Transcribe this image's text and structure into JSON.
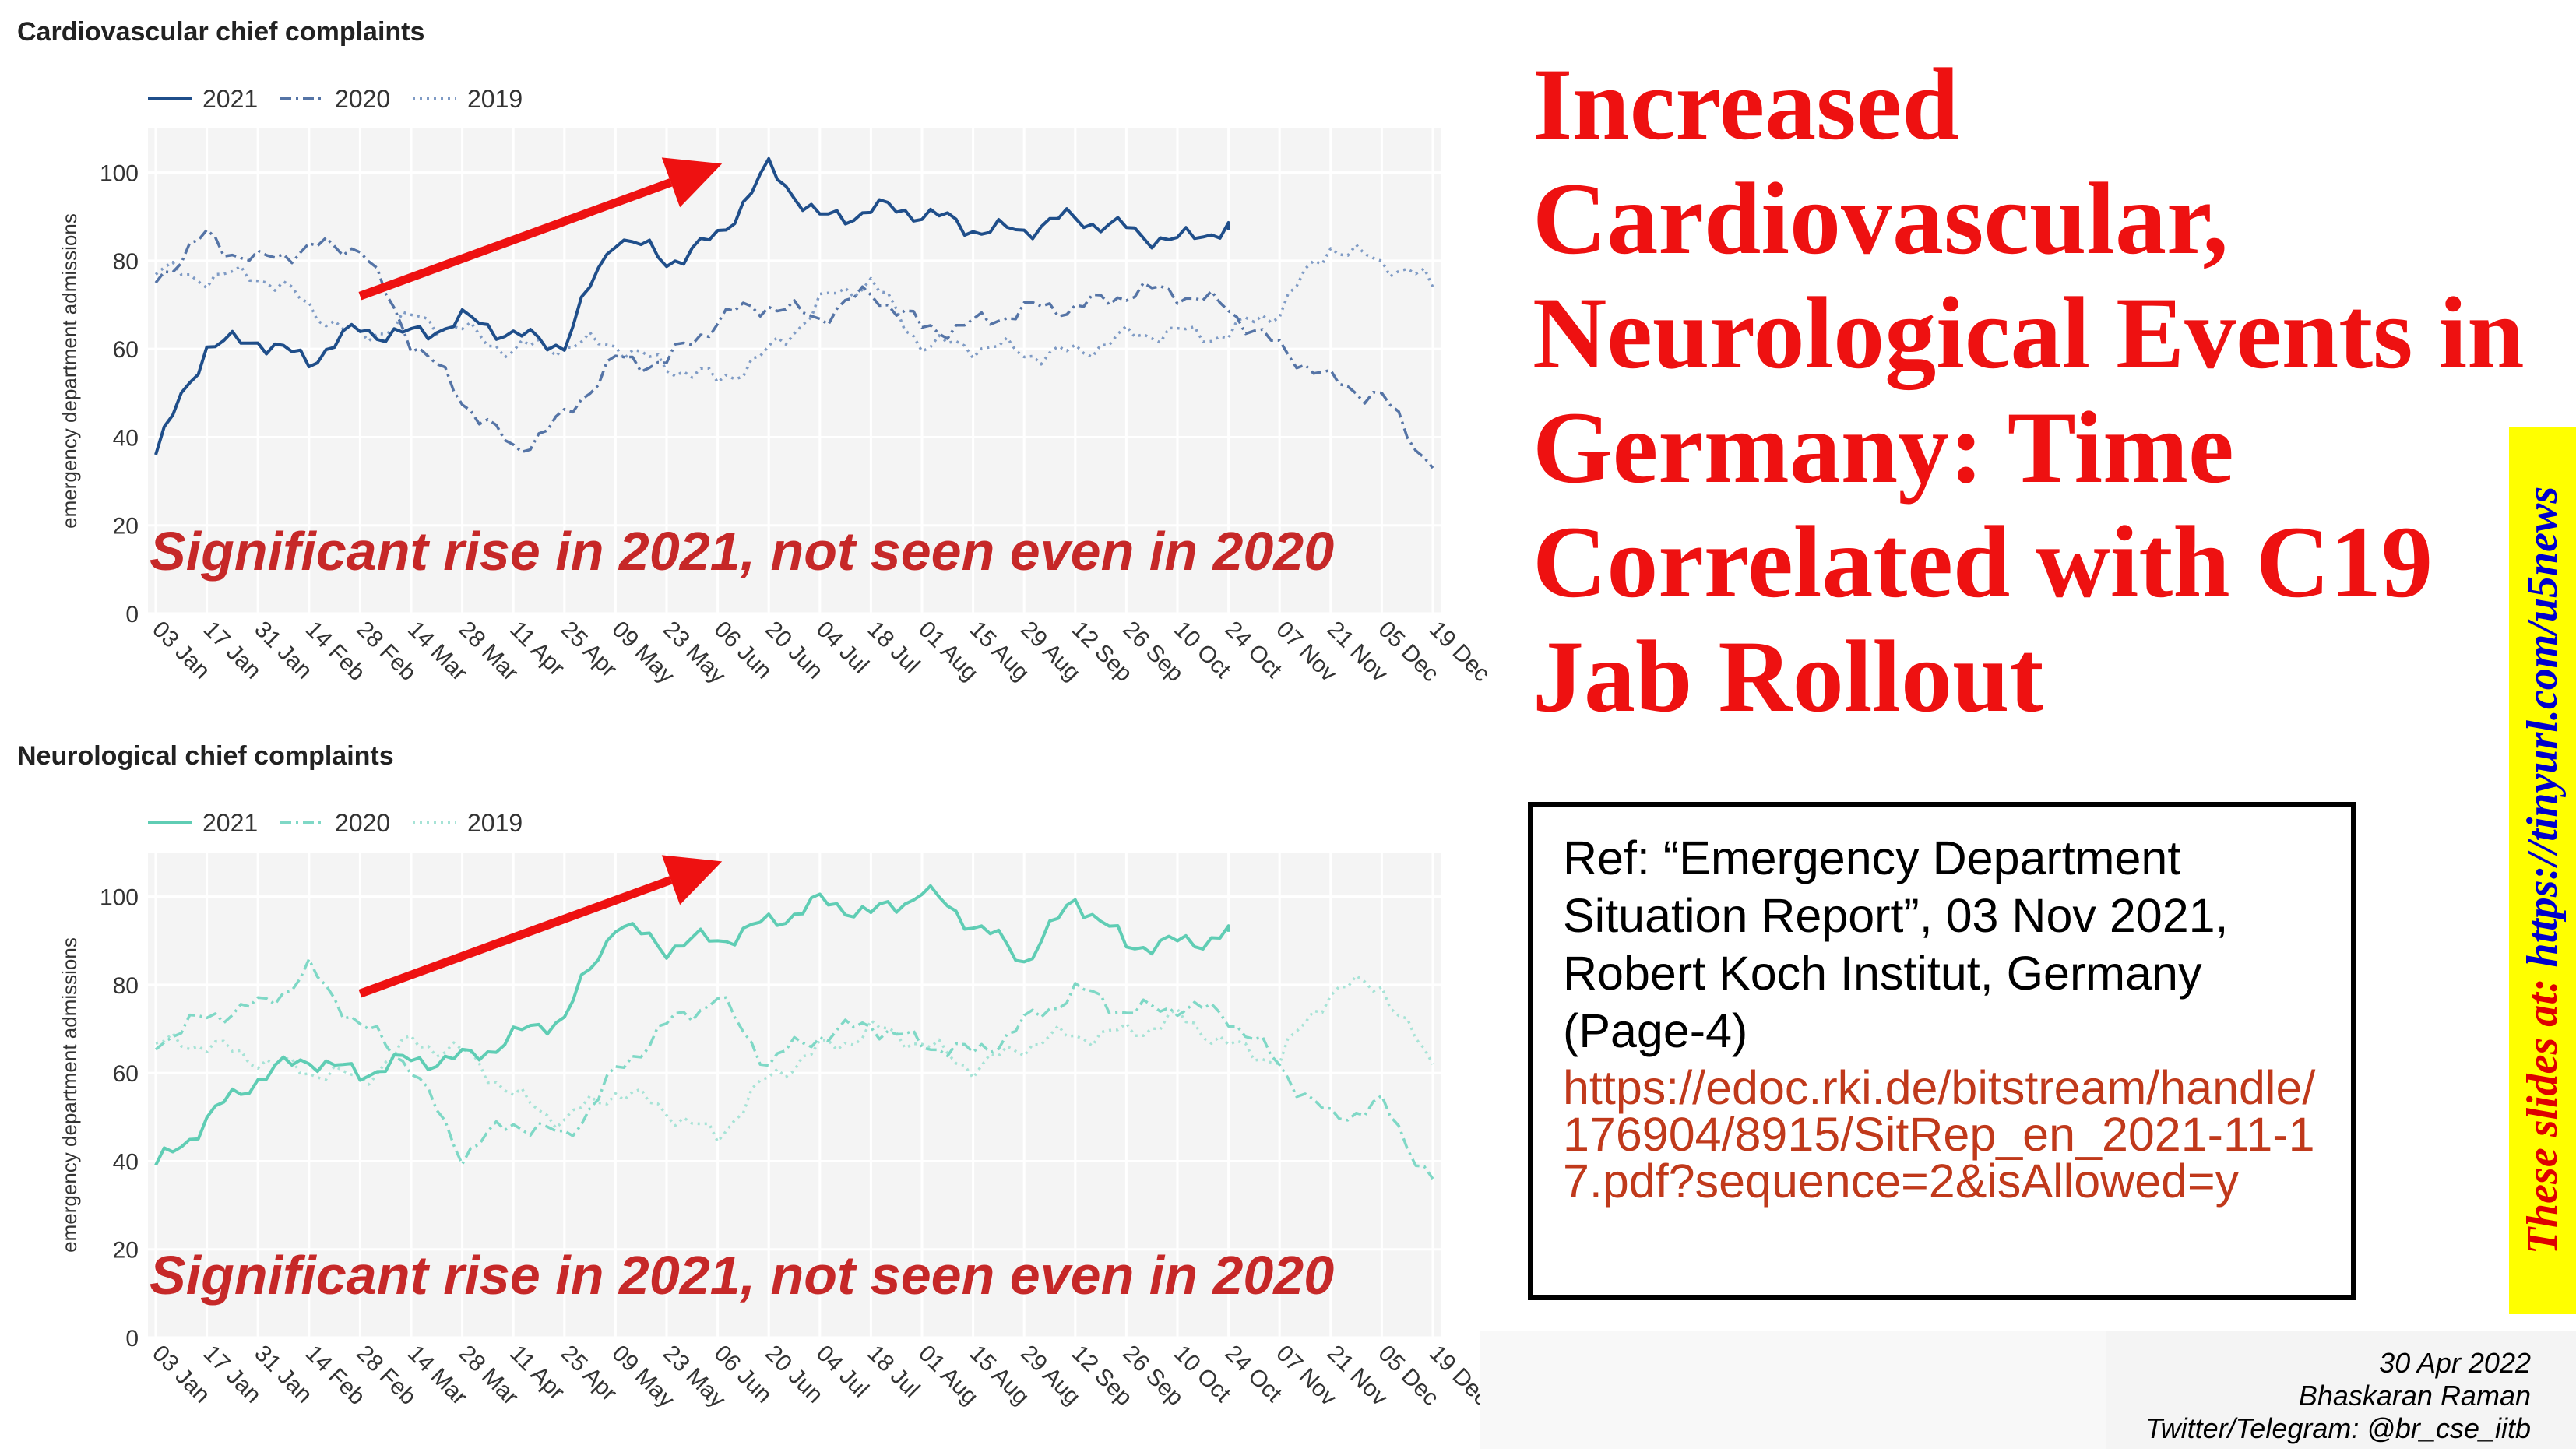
{
  "slide": {
    "title": "Increased Cardiovascular, Neurological Events in Germany: Time Correlated with C19 Jab Rollout",
    "reference": {
      "text": "Ref: “Emergency Department Situation Report”, 03 Nov 2021, Robert Koch Institut, Germany (Page-4)",
      "link": "https://edoc.rki.de/bitstream/handle/176904/8915/SitRep_en_2021-11-17.pdf?sequence=2&isAllowed=y"
    },
    "side_banner": {
      "label": "These slides at:",
      "url": "https://tinyurl.com/u5news"
    },
    "footer": {
      "date": "30 Apr 2022",
      "author": "Bhaskaran Raman",
      "handle": "Twitter/Telegram: @br_cse_iitb"
    }
  },
  "chart_data": [
    {
      "type": "line",
      "title": "Cardiovascular chief complaints",
      "ylabel": "emergency department admissions",
      "xlabel": "",
      "ylim": [
        0,
        110
      ],
      "yticks": [
        0,
        20,
        40,
        60,
        80,
        100
      ],
      "grid": true,
      "legend_position": "top-left",
      "annotation": "Significant rise in 2021, not seen even in 2020",
      "annotation_color": "#c62828",
      "arrow": {
        "from": [
          "28 Feb",
          72
        ],
        "to": [
          "20 Jun",
          102
        ],
        "color": "#ee1111"
      },
      "colors": {
        "2021": "#1f4e8a",
        "2020": "#5574a6",
        "2019": "#7f9bc5"
      },
      "x": [
        "03 Jan",
        "17 Jan",
        "31 Jan",
        "14 Feb",
        "28 Feb",
        "14 Mar",
        "28 Mar",
        "11 Apr",
        "25 Apr",
        "09 May",
        "23 May",
        "06 Jun",
        "20 Jun",
        "04 Jul",
        "18 Jul",
        "01 Aug",
        "15 Aug",
        "29 Aug",
        "12 Sep",
        "26 Sep",
        "10 Oct",
        "24 Oct",
        "07 Nov",
        "21 Nov",
        "05 Dec",
        "19 Dec"
      ],
      "series": [
        {
          "name": "2021",
          "dash": "solid",
          "values": [
            36,
            60,
            63,
            57,
            64,
            64,
            66,
            63,
            62,
            85,
            80,
            86,
            100,
            90,
            92,
            90,
            88,
            87,
            89,
            88,
            84,
            87,
            null,
            null,
            null,
            null
          ]
        },
        {
          "name": "2020",
          "dash": "dashdot",
          "values": [
            75,
            86,
            80,
            82,
            84,
            62,
            48,
            38,
            44,
            57,
            58,
            66,
            70,
            68,
            72,
            65,
            66,
            68,
            70,
            73,
            72,
            70,
            60,
            52,
            50,
            33
          ]
        },
        {
          "name": "2019",
          "dash": "dot",
          "values": [
            78,
            77,
            76,
            70,
            63,
            66,
            65,
            60,
            60,
            62,
            56,
            52,
            60,
            70,
            75,
            62,
            60,
            59,
            60,
            62,
            64,
            64,
            68,
            84,
            80,
            74
          ]
        }
      ]
    },
    {
      "type": "line",
      "title": "Neurological chief complaints",
      "ylabel": "emergency department admissions",
      "xlabel": "",
      "ylim": [
        0,
        110
      ],
      "yticks": [
        0,
        20,
        40,
        60,
        80,
        100
      ],
      "grid": true,
      "legend_position": "top-left",
      "annotation": "Significant rise in 2021, not seen even in 2020",
      "annotation_color": "#c62828",
      "arrow": {
        "from": [
          "28 Feb",
          78
        ],
        "to": [
          "20 Jun",
          108
        ],
        "color": "#ee1111"
      },
      "colors": {
        "2021": "#5fcdb4",
        "2020": "#7fd8c6",
        "2019": "#a6e3d6"
      },
      "x": [
        "03 Jan",
        "17 Jan",
        "31 Jan",
        "14 Feb",
        "28 Feb",
        "14 Mar",
        "28 Mar",
        "11 Apr",
        "25 Apr",
        "09 May",
        "23 May",
        "06 Jun",
        "20 Jun",
        "04 Jul",
        "18 Jul",
        "01 Aug",
        "15 Aug",
        "29 Aug",
        "12 Sep",
        "26 Sep",
        "10 Oct",
        "24 Oct",
        "07 Nov",
        "21 Nov",
        "05 Dec",
        "19 Dec"
      ],
      "series": [
        {
          "name": "2021",
          "dash": "solid",
          "values": [
            39,
            50,
            58,
            64,
            60,
            62,
            64,
            68,
            72,
            95,
            88,
            90,
            95,
            98,
            96,
            102,
            93,
            86,
            100,
            88,
            90,
            92,
            null,
            null,
            null,
            null
          ]
        },
        {
          "name": "2020",
          "dash": "dashdot",
          "values": [
            68,
            72,
            75,
            84,
            70,
            62,
            42,
            48,
            46,
            60,
            70,
            78,
            62,
            68,
            72,
            66,
            64,
            72,
            78,
            74,
            76,
            72,
            62,
            50,
            52,
            36
          ]
        },
        {
          "name": "2019",
          "dash": "dot",
          "values": [
            66,
            66,
            64,
            60,
            58,
            68,
            64,
            55,
            50,
            55,
            52,
            46,
            58,
            66,
            70,
            66,
            62,
            66,
            68,
            70,
            72,
            66,
            64,
            78,
            80,
            62
          ]
        }
      ]
    }
  ]
}
